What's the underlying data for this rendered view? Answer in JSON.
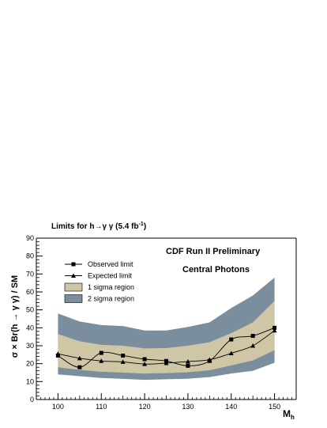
{
  "chart_data": {
    "type": "area",
    "title": "Limits for h→γ γ (5.4 fb",
    "title_superscript": "-1",
    "title_suffix": ")",
    "annotations": [
      "CDF Run II Preliminary",
      "Central Photons"
    ],
    "ylabel": "σ × Br(h → γ γ) / SM",
    "xlabel": "M",
    "xlabel_subscript": "h",
    "xlim": [
      95,
      155
    ],
    "ylim": [
      0,
      90
    ],
    "x_ticks": [
      100,
      110,
      120,
      130,
      140,
      150
    ],
    "y_ticks": [
      0,
      10,
      20,
      30,
      40,
      50,
      60,
      70,
      80,
      90
    ],
    "grid": false,
    "legend_position": "upper-left",
    "x": [
      100,
      105,
      110,
      115,
      120,
      125,
      130,
      135,
      140,
      145,
      150
    ],
    "series": [
      {
        "name": "Observed limit",
        "marker": "square",
        "values": [
          24.5,
          18,
          26,
          24.5,
          22.5,
          21.5,
          18.8,
          21.5,
          33.5,
          35.5,
          40
        ]
      },
      {
        "name": "Expected limit",
        "marker": "triangle",
        "values": [
          25.5,
          23,
          21.5,
          21,
          19.8,
          20.3,
          21.2,
          22.2,
          25.8,
          30,
          38.5
        ]
      }
    ],
    "bands": [
      {
        "name": "2 sigma region",
        "color": "#7b8e9d",
        "upper": [
          48,
          43.5,
          41.5,
          41,
          38.5,
          38.5,
          40.5,
          43,
          51,
          58,
          68
        ],
        "lower": [
          14,
          13,
          12,
          11.5,
          11,
          11.3,
          11.6,
          12.5,
          14.5,
          16,
          20.5
        ]
      },
      {
        "name": "1 sigma region",
        "color": "#cfc6a6",
        "upper": [
          36.5,
          32.5,
          30.5,
          30,
          28.5,
          28.7,
          30,
          32,
          37,
          43,
          55
        ],
        "lower": [
          18,
          16.5,
          15.5,
          15,
          14.5,
          14.7,
          15.2,
          16.3,
          19,
          21.8,
          27.5
        ]
      }
    ]
  }
}
